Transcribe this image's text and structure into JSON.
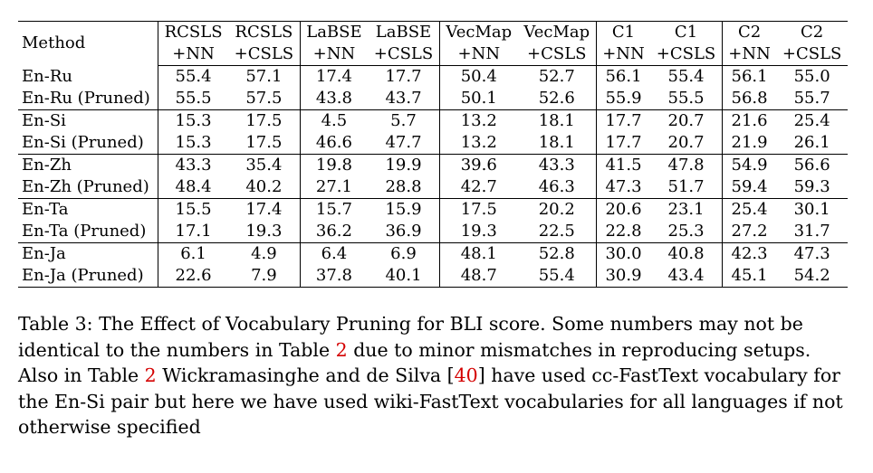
{
  "table": {
    "headers": {
      "method": "Method",
      "columns": [
        {
          "top": "RCSLS",
          "bottom": "+NN"
        },
        {
          "top": "RCSLS",
          "bottom": "+CSLS"
        },
        {
          "top": "LaBSE",
          "bottom": "+NN"
        },
        {
          "top": "LaBSE",
          "bottom": "+CSLS"
        },
        {
          "top": "VecMap",
          "bottom": "+NN"
        },
        {
          "top": "VecMap",
          "bottom": "+CSLS"
        },
        {
          "top": "C1",
          "bottom": "+NN"
        },
        {
          "top": "C1",
          "bottom": "+CSLS"
        },
        {
          "top": "C2",
          "bottom": "+NN"
        },
        {
          "top": "C2",
          "bottom": "+CSLS"
        }
      ]
    },
    "rows": [
      {
        "method": "En-Ru",
        "values": [
          "55.4",
          "57.1",
          "17.4",
          "17.7",
          "50.4",
          "52.7",
          "56.1",
          "55.4",
          "56.1",
          "55.0"
        ],
        "bold": [
          false,
          false,
          false,
          false,
          true,
          true,
          false,
          false,
          false,
          false
        ]
      },
      {
        "method": "En-Ru (Pruned)",
        "values": [
          "55.5",
          "57.5",
          "43.8",
          "43.7",
          "50.1",
          "52.6",
          "55.9",
          "55.5",
          "56.8",
          "55.7"
        ],
        "bold": [
          true,
          true,
          true,
          true,
          false,
          false,
          true,
          true,
          true,
          true
        ]
      },
      {
        "method": "En-Si",
        "values": [
          "15.3",
          "17.5",
          "4.5",
          "5.7",
          "13.2",
          "18.1",
          "17.7",
          "20.7",
          "21.6",
          "25.4"
        ],
        "bold": [
          true,
          true,
          false,
          false,
          true,
          true,
          true,
          true,
          false,
          false
        ]
      },
      {
        "method": "En-Si (Pruned)",
        "values": [
          "15.3",
          "17.5",
          "46.6",
          "47.7",
          "13.2",
          "18.1",
          "17.7",
          "20.7",
          "21.9",
          "26.1"
        ],
        "bold": [
          true,
          true,
          true,
          true,
          true,
          true,
          true,
          true,
          true,
          true
        ]
      },
      {
        "method": "En-Zh",
        "values": [
          "43.3",
          "35.4",
          "19.8",
          "19.9",
          "39.6",
          "43.3",
          "41.5",
          "47.8",
          "54.9",
          "56.6"
        ],
        "bold": [
          false,
          false,
          false,
          false,
          false,
          false,
          false,
          false,
          false,
          false
        ]
      },
      {
        "method": "En-Zh (Pruned)",
        "values": [
          "48.4",
          "40.2",
          "27.1",
          "28.8",
          "42.7",
          "46.3",
          "47.3",
          "51.7",
          "59.4",
          "59.3"
        ],
        "bold": [
          true,
          true,
          true,
          true,
          true,
          true,
          true,
          true,
          true,
          true
        ]
      },
      {
        "method": "En-Ta",
        "values": [
          "15.5",
          "17.4",
          "15.7",
          "15.9",
          "17.5",
          "20.2",
          "20.6",
          "23.1",
          "25.4",
          "30.1"
        ],
        "bold": [
          false,
          false,
          false,
          false,
          false,
          false,
          false,
          false,
          false,
          false
        ]
      },
      {
        "method": "En-Ta (Pruned)",
        "values": [
          "17.1",
          "19.3",
          "36.2",
          "36.9",
          "19.3",
          "22.5",
          "22.8",
          "25.3",
          "27.2",
          "31.7"
        ],
        "bold": [
          true,
          true,
          true,
          true,
          true,
          true,
          true,
          true,
          true,
          true
        ]
      },
      {
        "method": "En-Ja",
        "values": [
          "6.1",
          "4.9",
          "6.4",
          "6.9",
          "48.1",
          "52.8",
          "30.0",
          "40.8",
          "42.3",
          "47.3"
        ],
        "bold": [
          false,
          false,
          false,
          false,
          false,
          false,
          false,
          false,
          false,
          false
        ]
      },
      {
        "method": "En-Ja (Pruned)",
        "values": [
          "22.6",
          "7.9",
          "37.8",
          "40.1",
          "48.7",
          "55.4",
          "30.9",
          "43.4",
          "45.1",
          "54.2"
        ],
        "bold": [
          true,
          true,
          true,
          true,
          true,
          true,
          true,
          true,
          true,
          true
        ]
      }
    ]
  },
  "caption": {
    "part1": "Table 3: The Effect of Vocabulary Pruning for BLI score. Some numbers may not be identical to the numbers in Table ",
    "ref1": "2",
    "part2": " due to minor mismatches in reproducing setups. Also in Table ",
    "ref2": "2",
    "part3": " Wickramasinghe and de Silva [",
    "ref3": "40",
    "part4": "] have used cc-FastText vocabulary for the En-Si pair but here we have used wiki-FastText vocabularies for all languages if not otherwise specified"
  }
}
